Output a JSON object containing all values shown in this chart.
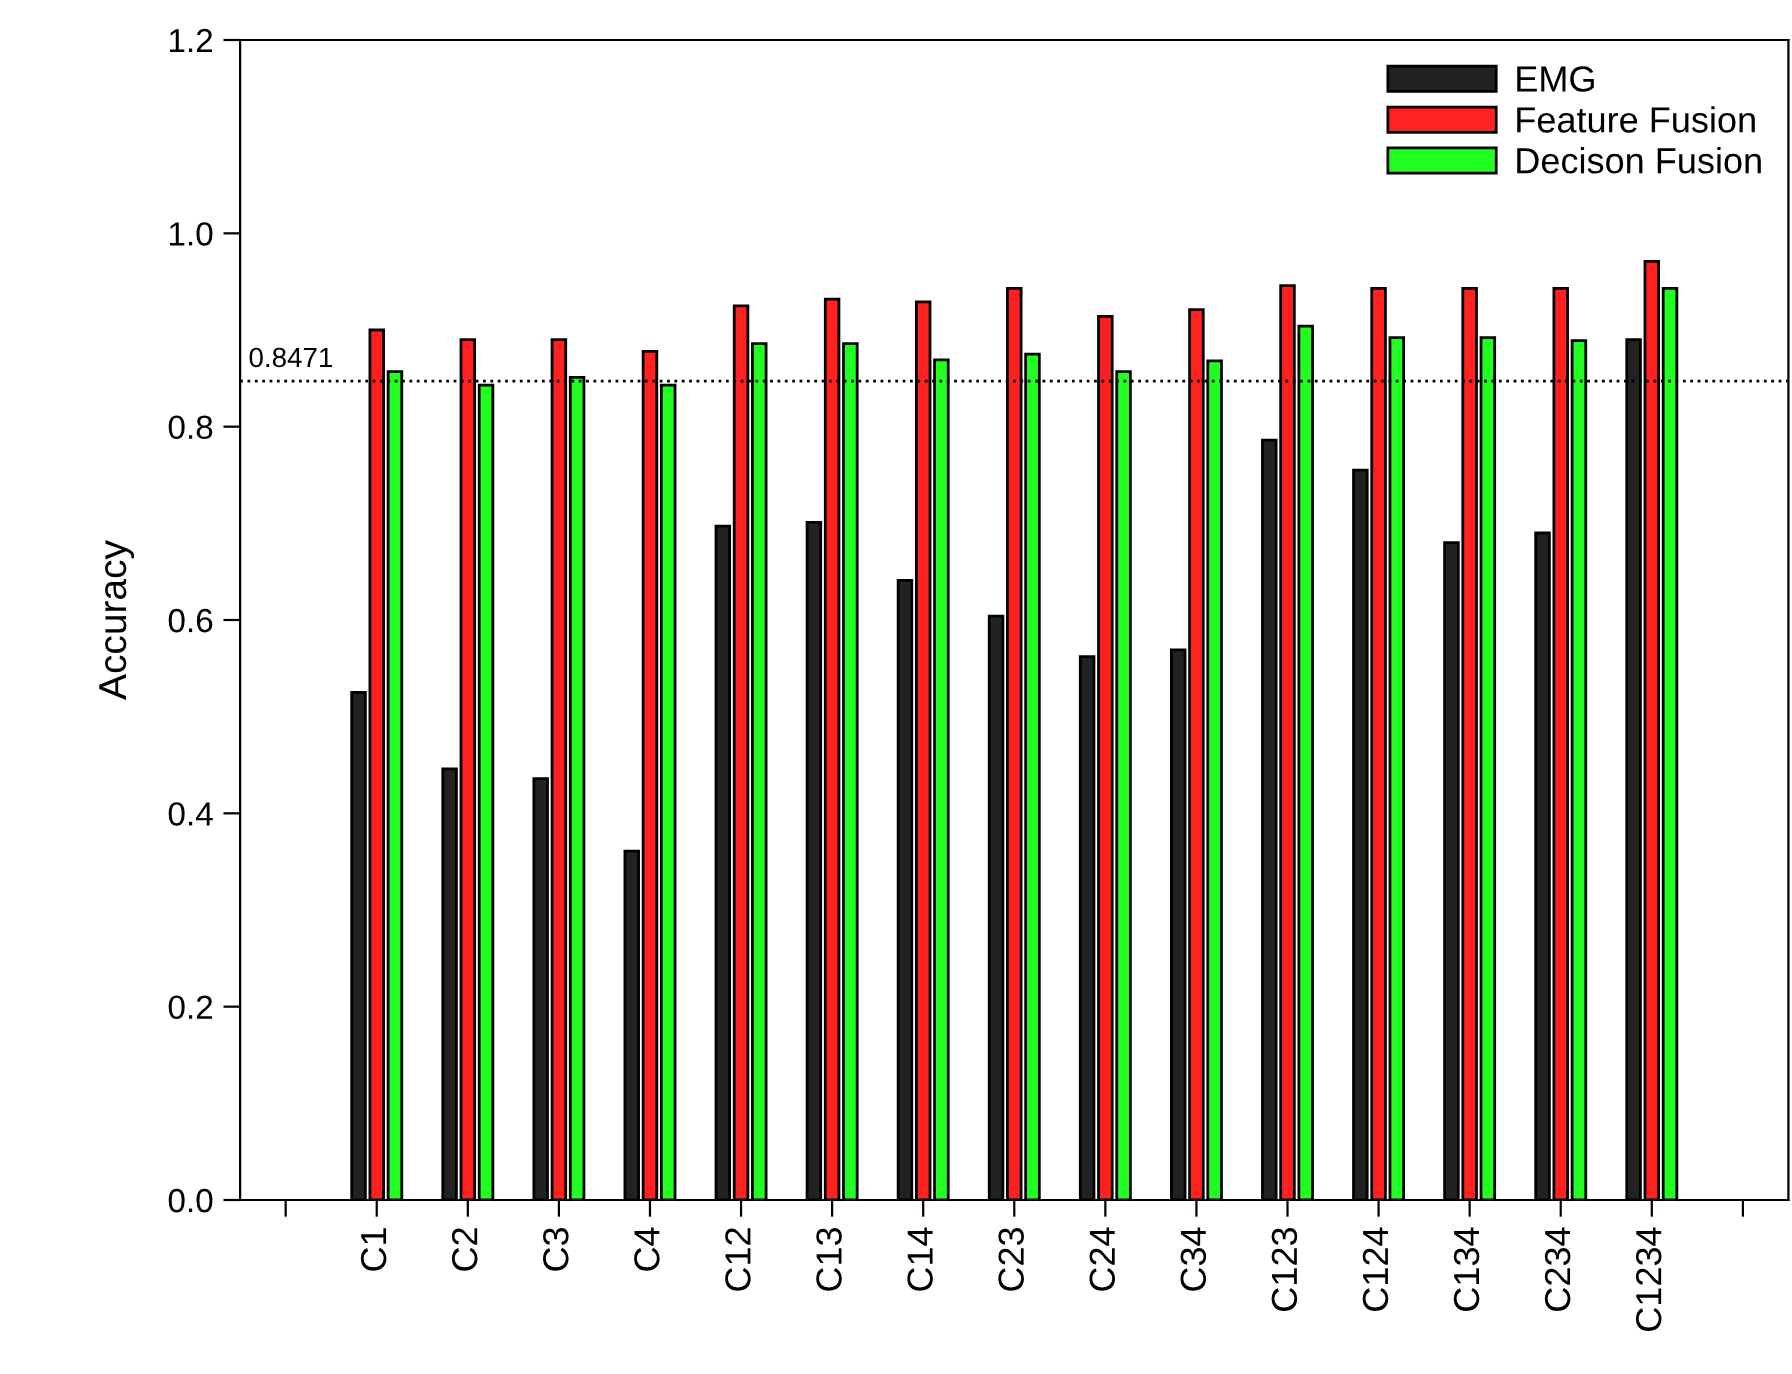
{
  "chart_data": {
    "type": "bar",
    "ylabel": "Accuracy",
    "categories": [
      null,
      "C1",
      "C2",
      "C3",
      "C4",
      "C12",
      "C13",
      "C14",
      "C23",
      "C24",
      "C34",
      "C123",
      "C124",
      "C134",
      "C234",
      "C1234",
      null
    ],
    "series": [
      {
        "name": "EMG",
        "color": "#222222",
        "values": [
          null,
          0.525,
          0.446,
          0.436,
          0.361,
          0.697,
          0.701,
          0.641,
          0.604,
          0.562,
          0.569,
          0.786,
          0.755,
          0.68,
          0.69,
          0.89,
          null
        ]
      },
      {
        "name": "Feature Fusion",
        "color": "#ff2020",
        "values": [
          null,
          0.9,
          0.89,
          0.89,
          0.878,
          0.925,
          0.932,
          0.929,
          0.943,
          0.914,
          0.921,
          0.946,
          0.943,
          0.943,
          0.943,
          0.971,
          null
        ]
      },
      {
        "name": "Decison Fusion",
        "color": "#20ff20",
        "values": [
          null,
          0.857,
          0.843,
          0.851,
          0.843,
          0.886,
          0.886,
          0.869,
          0.875,
          0.857,
          0.868,
          0.904,
          0.892,
          0.892,
          0.889,
          0.943,
          null
        ]
      }
    ],
    "ylim": [
      0,
      1.2
    ],
    "yticks": [
      {
        "value": 0,
        "label": "0.0"
      },
      0.2,
      0.4,
      0.6,
      0.8,
      {
        "value": 1,
        "label": "1.0"
      },
      1.2
    ],
    "ref_lines": [
      {
        "axis": "y",
        "value": 0.8471,
        "label": "0.8471",
        "color": "#000000",
        "line_style": "dotted"
      }
    ],
    "legend": "top right",
    "grid": false
  }
}
